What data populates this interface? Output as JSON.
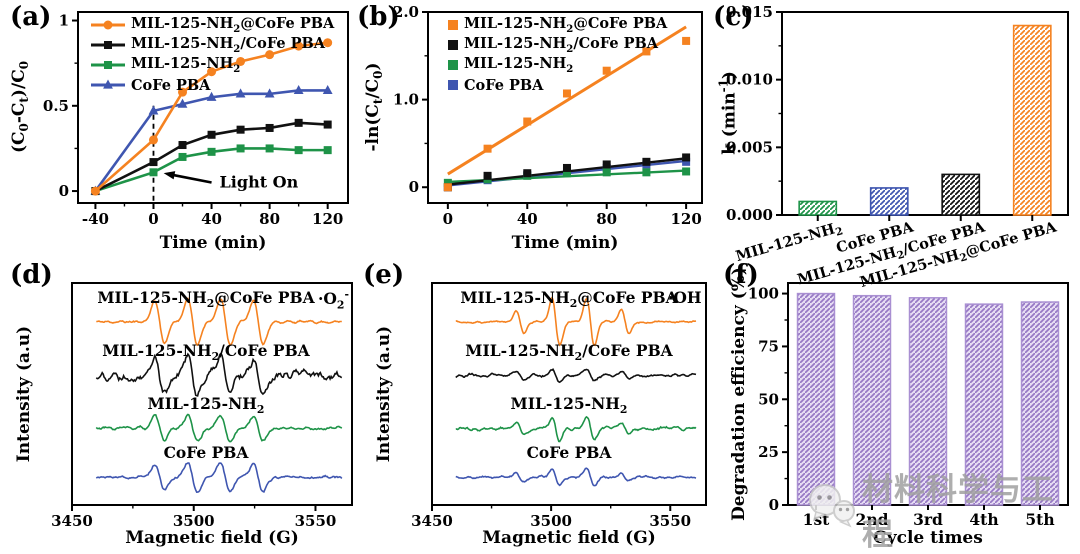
{
  "panels": {
    "a": {
      "letter": "(a)",
      "xlabel": "Time (min)",
      "ylabel": "(C_{0}-C_{t})/C_{0}"
    },
    "b": {
      "letter": "(b)",
      "xlabel": "Time (min)",
      "ylabel": "-ln(C_{t}/C_{0})"
    },
    "c": {
      "letter": "(c)",
      "xlabel": "",
      "ylabel": "k (min^{-1})"
    },
    "d": {
      "letter": "(d)",
      "xlabel": "Magnetic field (G)",
      "ylabel": "Intensity (a.u)",
      "radical": "·O_{2}^{-}"
    },
    "e": {
      "letter": "(e)",
      "xlabel": "Magnetic field (G)",
      "ylabel": "Intensity (a.u)",
      "radical": "·OH"
    },
    "f": {
      "letter": "(f)",
      "xlabel": "Cycle times",
      "ylabel": "Degradation efficiency (%)"
    }
  },
  "colors": {
    "orange": "#F58220",
    "black": "#111111",
    "green": "#1E9348",
    "blue": "#3F56B0",
    "purple_fill": "#E6DCF3",
    "purple_line": "#9678C4",
    "purple_edge": "#A98FD2"
  },
  "watermark": {
    "text": "材料科学与工程",
    "icon": "wechat-chat-bubbles-icon"
  },
  "chart_data": [
    {
      "panel": "a",
      "type": "line",
      "title": "",
      "xlabel": "Time (min)",
      "ylabel": "(C_{0}-C_{t})/C_{0}",
      "xlim": [
        -52,
        134
      ],
      "ylim": [
        -0.07,
        1.05
      ],
      "xticks": [
        -40,
        0,
        40,
        80,
        120
      ],
      "xminors": [
        -20,
        20,
        60,
        100
      ],
      "yticks": [
        0,
        0.5,
        1
      ],
      "ytick_labels": [
        "0",
        "0.5",
        "1"
      ],
      "yminors": [
        0.25,
        0.75
      ],
      "x": [
        -40,
        0,
        20,
        40,
        60,
        80,
        100,
        120
      ],
      "series": [
        {
          "name": "MIL-125-NH_{2}@CoFe PBA",
          "color_key": "orange",
          "marker": "circle",
          "y": [
            0,
            0.3,
            0.58,
            0.7,
            0.76,
            0.8,
            0.85,
            0.87
          ]
        },
        {
          "name": "MIL-125-NH_{2}/CoFe PBA",
          "color_key": "black",
          "marker": "square",
          "y": [
            0,
            0.17,
            0.27,
            0.33,
            0.36,
            0.37,
            0.4,
            0.39
          ]
        },
        {
          "name": "MIL-125-NH_{2}",
          "color_key": "green",
          "marker": "square",
          "y": [
            0,
            0.11,
            0.2,
            0.23,
            0.25,
            0.25,
            0.24,
            0.24
          ]
        },
        {
          "name": "CoFe PBA",
          "color_key": "blue",
          "marker": "triangle",
          "y": [
            0,
            0.47,
            0.51,
            0.55,
            0.57,
            0.57,
            0.59,
            0.59
          ]
        }
      ],
      "dashed_line_x": 0,
      "annotation": {
        "text": "Light On",
        "arrow_to": [
          7,
          0.105
        ],
        "text_at": [
          40,
          0.05
        ]
      },
      "legend_position": "top-left"
    },
    {
      "panel": "b",
      "type": "scatter",
      "title": "",
      "xlabel": "Time (min)",
      "ylabel": "-ln(C_{t}/C_{0})",
      "xlim": [
        -10,
        128
      ],
      "ylim": [
        -0.18,
        2.0
      ],
      "xticks": [
        0,
        40,
        80,
        120
      ],
      "xminors": [
        20,
        60,
        100
      ],
      "yticks": [
        0,
        1,
        2
      ],
      "ytick_labels": [
        "0",
        "1.0",
        "2.0"
      ],
      "yminors": [
        0.5,
        1.5
      ],
      "x": [
        0,
        20,
        40,
        60,
        80,
        100,
        120
      ],
      "fit_x": [
        0,
        120
      ],
      "series": [
        {
          "name": "MIL-125-NH_{2}@CoFe PBA",
          "color_key": "orange",
          "y": [
            0.0,
            0.44,
            0.75,
            1.07,
            1.33,
            1.55,
            1.67
          ],
          "fit": [
            0.15,
            1.83
          ]
        },
        {
          "name": "MIL-125-NH_{2}/CoFe PBA",
          "color_key": "black",
          "y": [
            0.0,
            0.13,
            0.16,
            0.22,
            0.26,
            0.29,
            0.34
          ],
          "fit": [
            0.03,
            0.33
          ]
        },
        {
          "name": "MIL-125-NH_{2}",
          "color_key": "green",
          "y": [
            0.05,
            0.09,
            0.13,
            0.16,
            0.17,
            0.17,
            0.18
          ],
          "fit": [
            0.06,
            0.19
          ]
        },
        {
          "name": "CoFe PBA",
          "color_key": "blue",
          "y": [
            0.0,
            0.08,
            0.14,
            0.18,
            0.22,
            0.26,
            0.29
          ],
          "fit": [
            0.02,
            0.3
          ]
        }
      ],
      "legend_position": "top-left"
    },
    {
      "panel": "c",
      "type": "bar",
      "title": "",
      "xlabel": "",
      "ylabel": "k (min^{-1})",
      "ylim": [
        0,
        0.015
      ],
      "yticks": [
        0,
        0.005,
        0.01,
        0.015
      ],
      "ytick_labels": [
        "0.000",
        "0.005",
        "0.010",
        "0.015"
      ],
      "yminors": [
        0.0025,
        0.0075,
        0.0125
      ],
      "categories": [
        "MIL-125-NH_{2}",
        "CoFe PBA",
        "MIL-125-NH_{2}/CoFe PBA",
        "MIL-125-NH_{2}@CoFe PBA"
      ],
      "values": [
        0.001,
        0.002,
        0.003,
        0.014
      ],
      "bar_color_keys": [
        "green",
        "blue",
        "black",
        "orange"
      ],
      "hatch": "diagonal",
      "rotated_labels": true
    },
    {
      "panel": "d",
      "type": "line",
      "subtype": "epr",
      "title": "",
      "xlabel": "Magnetic field (G)",
      "ylabel": "Intensity (a.u)",
      "radical": "·O_{2}^{-}",
      "xlim": [
        3450,
        3565
      ],
      "xticks": [
        3450,
        3500,
        3550
      ],
      "xminors": [
        3475,
        3525
      ],
      "trace_x_range": [
        3460,
        3561
      ],
      "peak_centers": [
        3486,
        3499.5,
        3513,
        3526.5
      ],
      "peak_rel_amps": [
        0.9,
        1,
        1,
        0.95
      ],
      "peak_width": 2.0,
      "traces": [
        {
          "name": "MIL-125-NH_{2}@CoFe PBA",
          "color_key": "orange",
          "amp": 1.0,
          "noise": 0.06,
          "base_frac": 0.175,
          "seed": 11
        },
        {
          "name": "MIL-125-NH_{2}/CoFe PBA",
          "color_key": "black",
          "amp": 0.8,
          "noise": 0.22,
          "base_frac": 0.415,
          "seed": 22
        },
        {
          "name": "MIL-125-NH_{2}",
          "color_key": "green",
          "amp": 0.55,
          "noise": 0.08,
          "base_frac": 0.655,
          "seed": 33
        },
        {
          "name": "CoFe PBA",
          "color_key": "blue",
          "amp": 0.62,
          "noise": 0.07,
          "base_frac": 0.875,
          "seed": 44
        }
      ]
    },
    {
      "panel": "e",
      "type": "line",
      "subtype": "epr",
      "title": "",
      "xlabel": "Magnetic field (G)",
      "ylabel": "Intensity (a.u)",
      "radical": "·OH",
      "xlim": [
        3450,
        3565
      ],
      "xticks": [
        3450,
        3500,
        3550
      ],
      "xminors": [
        3475,
        3525
      ],
      "trace_x_range": [
        3460,
        3561
      ],
      "peak_centers": [
        3487,
        3502,
        3516.5,
        3531
      ],
      "peak_rel_amps": [
        0.5,
        1,
        1,
        0.5
      ],
      "peak_width": 1.6,
      "traces": [
        {
          "name": "MIL-125-NH_{2}@CoFe PBA",
          "color_key": "orange",
          "amp": 1.0,
          "noise": 0.05,
          "base_frac": 0.175,
          "seed": 55
        },
        {
          "name": "MIL-125-NH_{2}/CoFe PBA",
          "color_key": "black",
          "amp": 0.28,
          "noise": 0.07,
          "base_frac": 0.415,
          "seed": 66
        },
        {
          "name": "MIL-125-NH_{2}",
          "color_key": "green",
          "amp": 0.5,
          "noise": 0.08,
          "base_frac": 0.655,
          "seed": 77
        },
        {
          "name": "CoFe PBA",
          "color_key": "blue",
          "amp": 0.38,
          "noise": 0.06,
          "base_frac": 0.875,
          "seed": 88
        }
      ]
    },
    {
      "panel": "f",
      "type": "bar",
      "title": "",
      "xlabel": "Cycle times",
      "ylabel": "Degradation efficiency (%)",
      "ylim": [
        0,
        105
      ],
      "yticks": [
        0,
        25,
        50,
        75,
        100
      ],
      "ytick_labels": [
        "0",
        "25",
        "50",
        "75",
        "100"
      ],
      "yminors": [
        12.5,
        37.5,
        62.5,
        87.5
      ],
      "categories": [
        "1st",
        "2nd",
        "3rd",
        "4th",
        "5th"
      ],
      "values": [
        100,
        99,
        98,
        95,
        96
      ],
      "bar_color_keys": [
        "purple",
        "purple",
        "purple",
        "purple",
        "purple"
      ],
      "hatch": "diagonal",
      "rotated_labels": false
    }
  ]
}
